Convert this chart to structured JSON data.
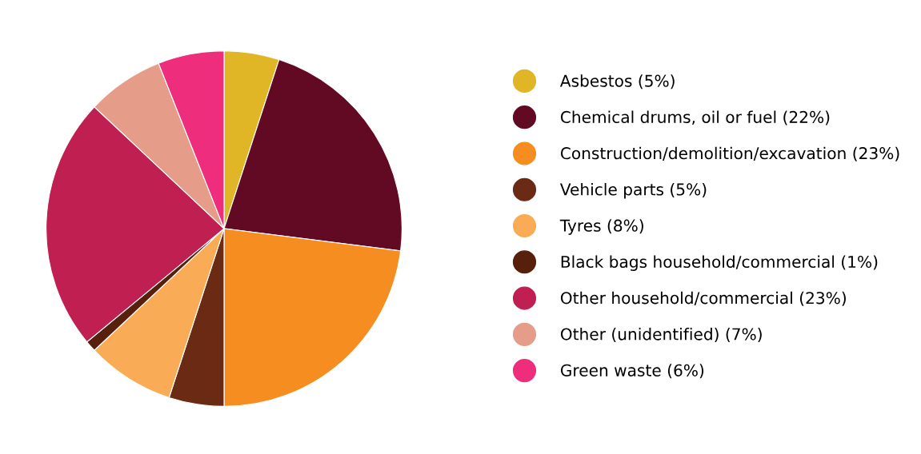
{
  "chart_data": {
    "type": "pie",
    "categories": [
      "Asbestos (5%)",
      "Chemical drums, oil or fuel (22%)",
      "Construction/demolition/excavation (23%)",
      "Vehicle parts (5%)",
      "Tyres (8%)",
      "Black bags household/commercial (1%)",
      "Other household/commercial (23%)",
      "Other (unidentified) (7%)",
      "Green waste (6%)"
    ],
    "values": [
      5,
      22,
      23,
      5,
      8,
      1,
      23,
      7,
      6
    ],
    "colors": [
      "#e0b526",
      "#620a24",
      "#f58d20",
      "#6b2a14",
      "#f9ab55",
      "#56200c",
      "#c01f51",
      "#e59c89",
      "#ee2d7c"
    ],
    "legend": "right"
  }
}
